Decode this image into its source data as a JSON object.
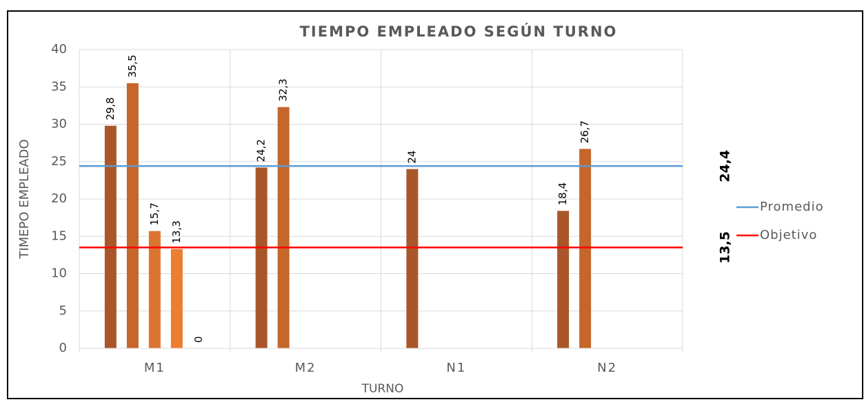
{
  "chart_data": {
    "type": "bar",
    "title": "TIEMPO EMPLEADO SEGÚN TURNO",
    "x_label": "TURNO",
    "y_label": "TIMEPO EMPLEADO",
    "categories": [
      "M1",
      "M2",
      "N1",
      "N2"
    ],
    "series": [
      {
        "color": "#a9572a",
        "values": [
          29.8,
          24.2,
          24,
          18.4
        ],
        "value_labels": [
          "29,8",
          "24,2",
          "24",
          "18,4"
        ]
      },
      {
        "color": "#c5662b",
        "values": [
          35.5,
          32.3,
          null,
          26.7
        ],
        "value_labels": [
          "35,5",
          "32,3",
          null,
          "26,7"
        ]
      },
      {
        "color": "#db742f",
        "values": [
          15.7,
          null,
          null,
          null
        ],
        "value_labels": [
          "15,7",
          null,
          null,
          null
        ]
      },
      {
        "color": "#ed7d31",
        "values": [
          13.3,
          null,
          null,
          null
        ],
        "value_labels": [
          "13,3",
          null,
          null,
          null
        ]
      },
      {
        "color": "#f08a45",
        "values": [
          0,
          null,
          null,
          null
        ],
        "value_labels": [
          "0",
          null,
          null,
          null
        ]
      }
    ],
    "lines": [
      {
        "name": "Promedio",
        "color": "#5b9bd5",
        "value": 24.4,
        "value_label": "24,4"
      },
      {
        "name": "Objetivo",
        "color": "#ff0000",
        "value": 13.5,
        "value_label": "13,5"
      }
    ],
    "ylim": [
      0,
      40
    ],
    "yticks": [
      0,
      5,
      10,
      15,
      20,
      25,
      30,
      35,
      40
    ],
    "grid": true
  }
}
